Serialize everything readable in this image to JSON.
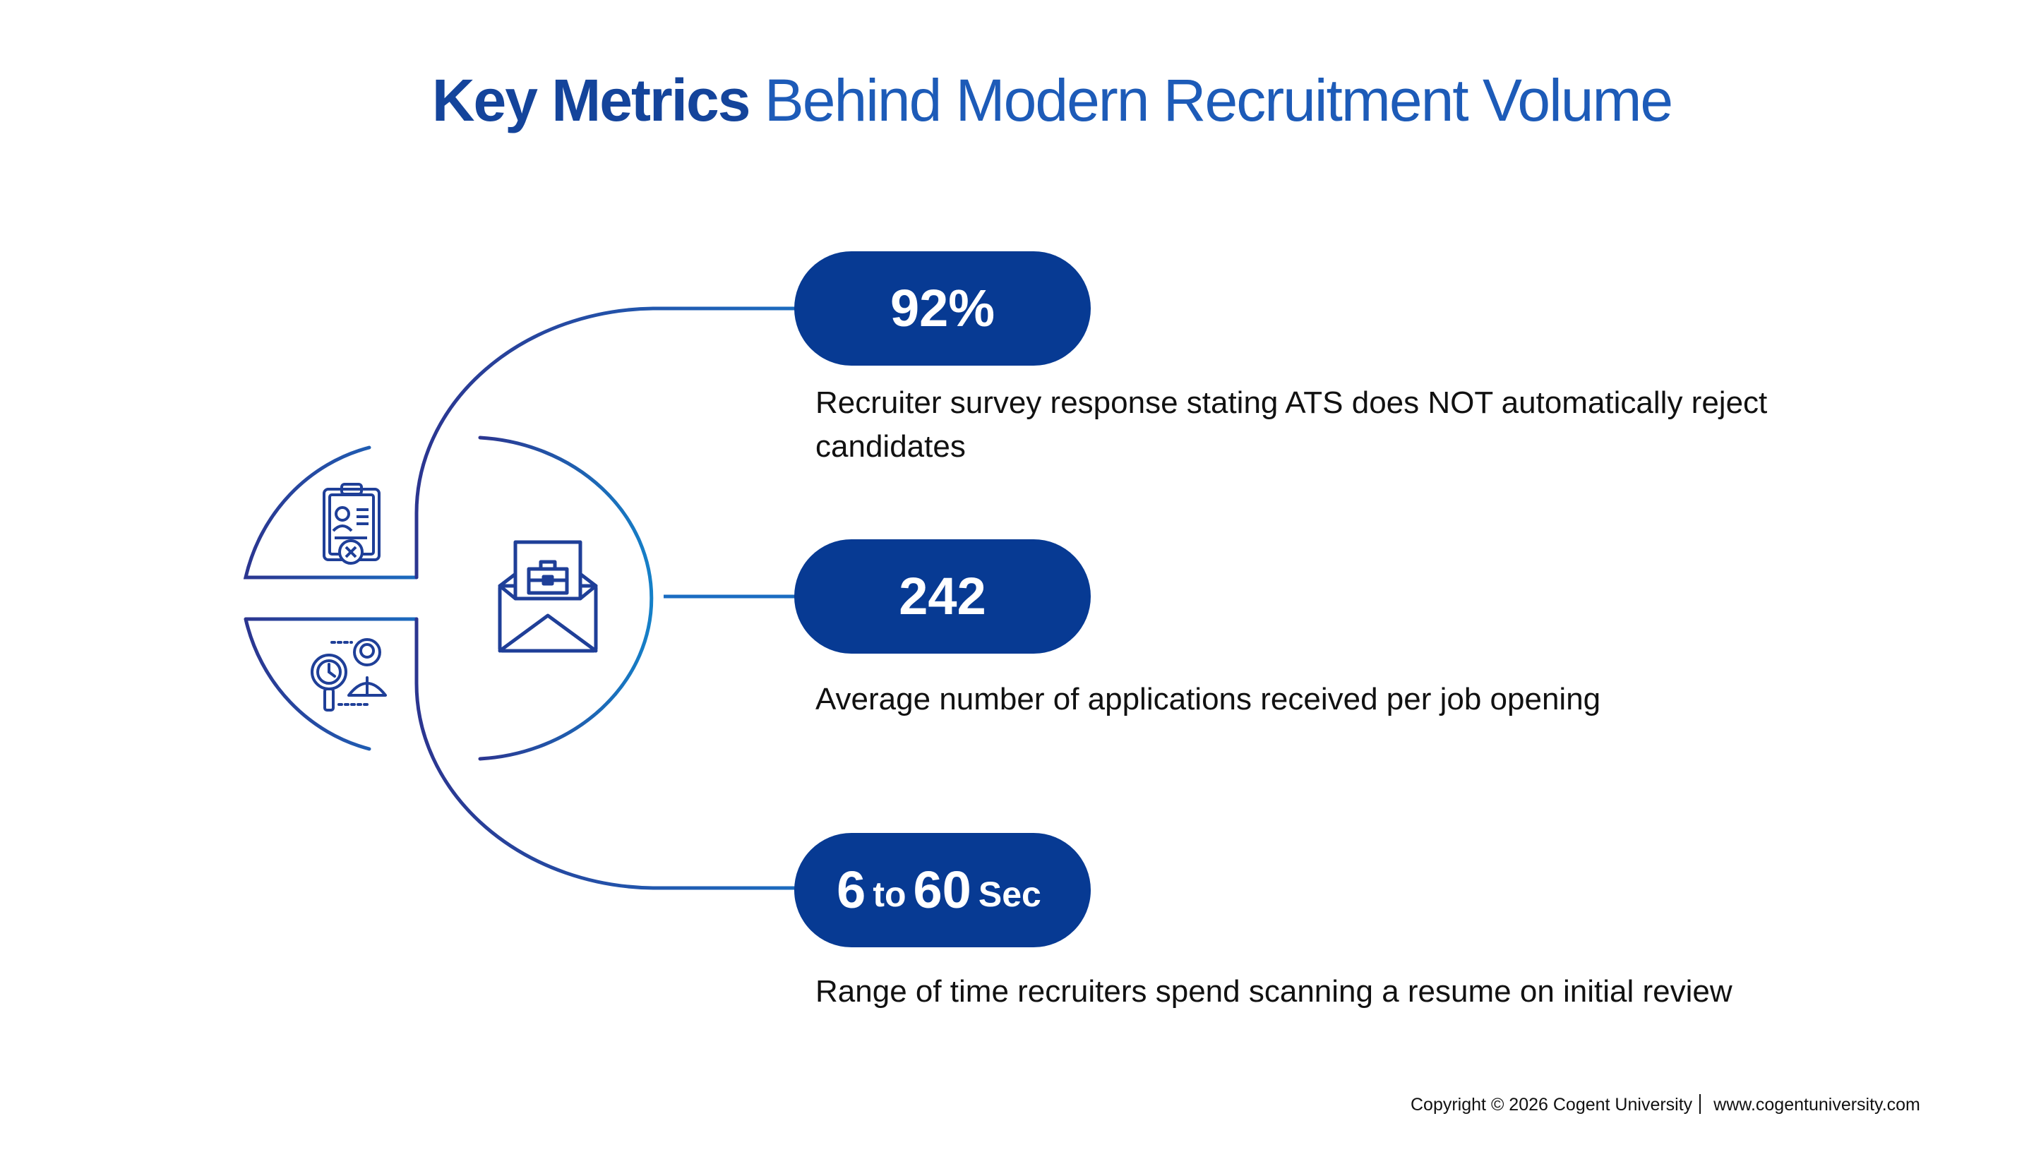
{
  "title": {
    "bold": "Key Metrics",
    "rest": "Behind Modern Recruitment Volume"
  },
  "metrics": [
    {
      "value": "92%",
      "description": "Recruiter survey response stating ATS does NOT automatically reject candidates"
    },
    {
      "value": "242",
      "description": "Average number of applications received per job opening"
    },
    {
      "value_a": "6",
      "value_joiner": "to",
      "value_b": "60",
      "value_unit": "Sec",
      "description": "Range of time recruiters spend scanning a resume on initial review"
    }
  ],
  "icons": [
    "resume-rejected-icon",
    "envelope-briefcase-icon",
    "candidate-search-timer-icon"
  ],
  "footer": {
    "copyright": "Copyright © 2026 Cogent University",
    "website": "www.cogentuniversity.com"
  },
  "colors": {
    "pill": "#073a93",
    "title_bold": "#14449b",
    "title": "#1d5bb8",
    "line_dark": "#2a3a8f",
    "line_light": "#1b75c9"
  }
}
